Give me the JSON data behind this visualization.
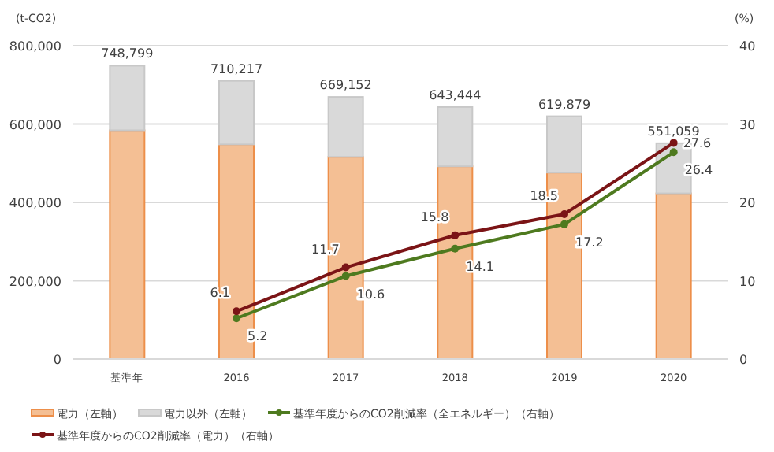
{
  "chart_data": {
    "type": "bar",
    "stacked": true,
    "ylabel": "(t-CO2)",
    "y2label": "(%)",
    "categories": [
      "基準年",
      "2016",
      "2017",
      "2018",
      "2019",
      "2020"
    ],
    "series": [
      {
        "name": "電力（左軸）",
        "axis": "y",
        "color": "#f4bf94",
        "values": [
          584000,
          548000,
          516000,
          492000,
          476000,
          423000
        ]
      },
      {
        "name": "電力以外（左軸）",
        "axis": "y",
        "color": "#d9d9d9",
        "values": [
          164799,
          162217,
          153152,
          151444,
          143879,
          128059
        ]
      },
      {
        "name": "基準年度からのCO2削減率（全エネルギー）（右軸）",
        "type": "line",
        "axis": "y2",
        "color": "#4e7a1f",
        "marker": "circle",
        "values": [
          null,
          5.2,
          10.6,
          14.1,
          17.2,
          26.4
        ],
        "value_labels": [
          null,
          "5.2",
          "10.6",
          "14.1",
          "17.2",
          "26.4"
        ]
      },
      {
        "name": "基準年度からのCO2削減率（電力）（右軸）",
        "type": "line",
        "axis": "y2",
        "color": "#7b1416",
        "marker": "circle",
        "values": [
          null,
          6.1,
          11.7,
          15.8,
          18.5,
          27.6
        ],
        "value_labels": [
          null,
          "6.1",
          "11.7",
          "15.8",
          "18.5",
          "27.6"
        ]
      }
    ],
    "totals": [
      "748,799",
      "710,217",
      "669,152",
      "643,444",
      "619,879",
      "551,059"
    ],
    "ylim": [
      0,
      800000
    ],
    "yticks": [
      0,
      {
        "value": 200000,
        "label": "200,000"
      },
      {
        "value": 400000,
        "label": "400,000"
      },
      {
        "value": 600000,
        "label": "600,000"
      },
      {
        "value": 800000,
        "label": "800,000"
      }
    ],
    "y2lim": [
      0,
      40
    ],
    "y2ticks": [
      0,
      10,
      20,
      30,
      40
    ],
    "grid": "y",
    "legend": "bottom"
  }
}
